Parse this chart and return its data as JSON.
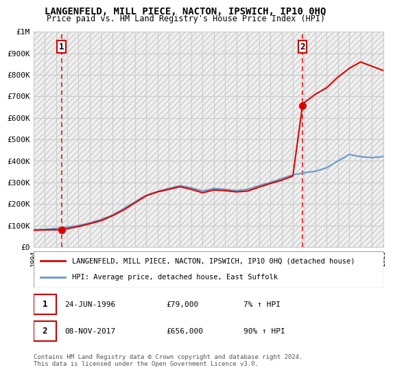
{
  "title": "LANGENFELD, MILL PIECE, NACTON, IPSWICH, IP10 0HQ",
  "subtitle": "Price paid vs. HM Land Registry's House Price Index (HPI)",
  "property_label": "LANGENFELD, MILL PIECE, NACTON, IPSWICH, IP10 0HQ (detached house)",
  "hpi_label": "HPI: Average price, detached house, East Suffolk",
  "point1_label": "1",
  "point1_date": "24-JUN-1996",
  "point1_price": "£79,000",
  "point1_hpi": "7% ↑ HPI",
  "point2_label": "2",
  "point2_date": "08-NOV-2017",
  "point2_price": "£656,000",
  "point2_hpi": "90% ↑ HPI",
  "footer": "Contains HM Land Registry data © Crown copyright and database right 2024.\nThis data is licensed under the Open Government Licence v3.0.",
  "property_color": "#dd0000",
  "hpi_color": "#6699cc",
  "background_hatch_color": "#e8e8e8",
  "ylim": [
    0,
    1000000
  ],
  "xlim_start": 1994,
  "xlim_end": 2025,
  "point1_x": 1996.5,
  "point1_y": 79000,
  "point2_x": 2017.85,
  "point2_y": 656000
}
